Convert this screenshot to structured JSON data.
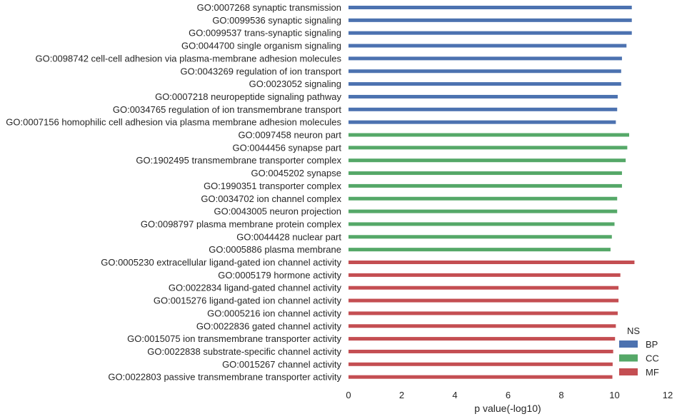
{
  "chart_data": {
    "type": "bar",
    "orientation": "horizontal",
    "xlabel": "p value(-log10)",
    "ylabel": "",
    "xlim": [
      0,
      12
    ],
    "xticks": [
      "0",
      "2",
      "4",
      "6",
      "8",
      "10",
      "12"
    ],
    "grid": false,
    "legend": {
      "title": "NS",
      "placement": "bottom-right",
      "entries": [
        {
          "name": "BP",
          "color": "#4c72b0"
        },
        {
          "name": "CC",
          "color": "#55a868"
        },
        {
          "name": "MF",
          "color": "#c44e52"
        }
      ]
    },
    "bars": [
      {
        "label": "GO:0007268 synaptic transmission",
        "value": 10.65,
        "ns": "BP"
      },
      {
        "label": "GO:0099536 synaptic signaling",
        "value": 10.65,
        "ns": "BP"
      },
      {
        "label": "GO:0099537 trans-synaptic signaling",
        "value": 10.65,
        "ns": "BP"
      },
      {
        "label": "GO:0044700 single organism signaling",
        "value": 10.45,
        "ns": "BP"
      },
      {
        "label": "GO:0098742 cell-cell adhesion via plasma-membrane adhesion molecules",
        "value": 10.28,
        "ns": "BP"
      },
      {
        "label": "GO:0043269 regulation of ion transport",
        "value": 10.25,
        "ns": "BP"
      },
      {
        "label": "GO:0023052 signaling",
        "value": 10.25,
        "ns": "BP"
      },
      {
        "label": "GO:0007218 neuropeptide signaling pathway",
        "value": 10.12,
        "ns": "BP"
      },
      {
        "label": "GO:0034765 regulation of ion transmembrane transport",
        "value": 10.1,
        "ns": "BP"
      },
      {
        "label": "GO:0007156 homophilic cell adhesion via plasma membrane adhesion molecules",
        "value": 10.05,
        "ns": "BP"
      },
      {
        "label": "GO:0097458 neuron part",
        "value": 10.55,
        "ns": "CC"
      },
      {
        "label": "GO:0044456 synapse part",
        "value": 10.48,
        "ns": "CC"
      },
      {
        "label": "GO:1902495 transmembrane transporter complex",
        "value": 10.42,
        "ns": "CC"
      },
      {
        "label": "GO:0045202 synapse",
        "value": 10.28,
        "ns": "CC"
      },
      {
        "label": "GO:1990351 transporter complex",
        "value": 10.28,
        "ns": "CC"
      },
      {
        "label": "GO:0034702 ion channel complex",
        "value": 10.1,
        "ns": "CC"
      },
      {
        "label": "GO:0043005 neuron projection",
        "value": 10.1,
        "ns": "CC"
      },
      {
        "label": "GO:0098797 plasma membrane protein complex",
        "value": 10.0,
        "ns": "CC"
      },
      {
        "label": "GO:0044428 nuclear part",
        "value": 9.9,
        "ns": "CC"
      },
      {
        "label": "GO:0005886 plasma membrane",
        "value": 9.85,
        "ns": "CC"
      },
      {
        "label": "GO:0005230 extracellular ligand-gated ion channel activity",
        "value": 10.75,
        "ns": "MF"
      },
      {
        "label": "GO:0005179 hormone activity",
        "value": 10.22,
        "ns": "MF"
      },
      {
        "label": "GO:0022834 ligand-gated channel activity",
        "value": 10.15,
        "ns": "MF"
      },
      {
        "label": "GO:0015276 ligand-gated ion channel activity",
        "value": 10.15,
        "ns": "MF"
      },
      {
        "label": "GO:0005216 ion channel activity",
        "value": 10.12,
        "ns": "MF"
      },
      {
        "label": "GO:0022836 gated channel activity",
        "value": 10.05,
        "ns": "MF"
      },
      {
        "label": "GO:0015075 ion transmembrane transporter activity",
        "value": 10.02,
        "ns": "MF"
      },
      {
        "label": "GO:0022838 substrate-specific channel activity",
        "value": 9.95,
        "ns": "MF"
      },
      {
        "label": "GO:0015267 channel activity",
        "value": 9.93,
        "ns": "MF"
      },
      {
        "label": "GO:0022803 passive transmembrane transporter activity",
        "value": 9.92,
        "ns": "MF"
      }
    ]
  }
}
